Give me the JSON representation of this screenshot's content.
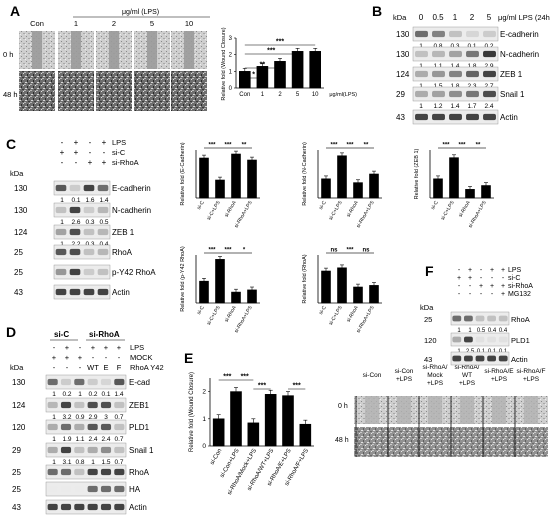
{
  "panelA": {
    "letter": "A",
    "conc_header": "μg/ml (LPS)",
    "col_labels": [
      "Con",
      "1",
      "2",
      "5",
      "10"
    ],
    "row_labels": [
      "0 h",
      "48 h"
    ],
    "chart_data": {
      "type": "bar",
      "ylabel": "Relative fold (Wound Closure)",
      "xlabel": "μg/ml(LPS)",
      "categories": [
        "Con",
        "1",
        "2",
        "5",
        "10"
      ],
      "values": [
        1.0,
        1.3,
        1.6,
        2.2,
        2.2
      ],
      "ylim": [
        0,
        3
      ],
      "yticks": [
        "0",
        "1",
        "2",
        "3"
      ],
      "significance": [
        "*",
        "**",
        "***",
        "***"
      ]
    }
  },
  "panelB": {
    "letter": "B",
    "header_kda": "kDa",
    "lanes": [
      "0",
      "0.5",
      "1",
      "2",
      "5"
    ],
    "header_unit": "μg/ml LPS (24h)",
    "rows": [
      {
        "kda": "130",
        "name": "E-cadherin",
        "q": [
          "1",
          "0.8",
          "0.3",
          "0.1",
          "0.2"
        ]
      },
      {
        "kda": "130",
        "name": "N-cadherin",
        "q": [
          "1",
          "1.1",
          "1.4",
          "1.8",
          "2.9"
        ]
      },
      {
        "kda": "124",
        "name": "ZEB 1",
        "q": [
          "1",
          "1.5",
          "1.8",
          "2.3",
          "2.7"
        ]
      },
      {
        "kda": "29",
        "name": "Snail 1",
        "q": [
          "1",
          "1.2",
          "1.4",
          "1.7",
          "2.4"
        ]
      },
      {
        "kda": "43",
        "name": "Actin",
        "q": []
      }
    ]
  },
  "panelC": {
    "letter": "C",
    "treatments": [
      {
        "name": "LPS",
        "signs": [
          "-",
          "+",
          "-",
          "+"
        ]
      },
      {
        "name": "si-C",
        "signs": [
          "+",
          "+",
          "-",
          "-"
        ]
      },
      {
        "name": "si-RhoA",
        "signs": [
          "-",
          "-",
          "+",
          "+"
        ]
      }
    ],
    "header_kda": "kDa",
    "rows": [
      {
        "kda": "130",
        "name": "E-cadherin",
        "q": [
          "1",
          "0.1",
          "1.6",
          "1.4"
        ]
      },
      {
        "kda": "130",
        "name": "N-cadherin",
        "q": [
          "1",
          "2.6",
          "0.3",
          "0.5"
        ]
      },
      {
        "kda": "124",
        "name": "ZEB 1",
        "q": [
          "1",
          "2.2",
          "0.3",
          "0.4"
        ]
      },
      {
        "kda": "25",
        "name": "RhoA",
        "q": []
      },
      {
        "kda": "25",
        "name": "p-Y42 RhoA",
        "q": []
      },
      {
        "kda": "43",
        "name": "Actin",
        "q": []
      }
    ],
    "chart_data": [
      {
        "type": "bar",
        "ylabel": "Relative fold (E-Cadherin)",
        "categories": [
          "si-C",
          "si-C+LPS",
          "si-RhoA",
          "si-RhoA+LPS"
        ],
        "values": [
          1.0,
          0.45,
          1.1,
          0.95
        ],
        "ylim": [
          0,
          1.2
        ],
        "significance": [
          "***",
          "***",
          "**"
        ]
      },
      {
        "type": "bar",
        "ylabel": "Relative fold (N-Cadherin)",
        "categories": [
          "si-C",
          "si-C+LPS",
          "si-RhoA",
          "si-RhoA+LPS"
        ],
        "values": [
          1.0,
          2.2,
          0.8,
          1.25
        ],
        "ylim": [
          0,
          2.5
        ],
        "significance": [
          "***",
          "***",
          "**"
        ]
      },
      {
        "type": "bar",
        "ylabel": "Relative fold (ZEB 1)",
        "categories": [
          "si-C",
          "si-C+LPS",
          "si-RhoA",
          "si-RhoA+LPS"
        ],
        "values": [
          1.0,
          2.1,
          0.45,
          0.65
        ],
        "ylim": [
          0,
          2.5
        ],
        "significance": [
          "***",
          "***",
          "**"
        ]
      },
      {
        "type": "bar",
        "ylabel": "Relative fold (p-Y42 RhoA)",
        "categories": [
          "si-C",
          "si-C+LPS",
          "si-RhoA",
          "si-RhoA+LPS"
        ],
        "values": [
          1.0,
          2.0,
          0.5,
          0.6
        ],
        "ylim": [
          0,
          2.2
        ],
        "significance": [
          "***",
          "***",
          "*"
        ]
      },
      {
        "type": "bar",
        "ylabel": "Relative fold (RhoA)",
        "categories": [
          "si-C",
          "si-C+LPS",
          "si-RhoA",
          "si-RhoA+LPS"
        ],
        "values": [
          1.0,
          1.1,
          0.5,
          0.55
        ],
        "ylim": [
          0,
          1.5
        ],
        "significance": [
          "ns",
          "***",
          "ns"
        ]
      }
    ]
  },
  "panelD": {
    "letter": "D",
    "group_labels": [
      "si-C",
      "si-RhoA"
    ],
    "treatments": [
      {
        "name": "LPS",
        "signs": [
          "-",
          "+",
          "-",
          "+",
          "+",
          "+"
        ]
      },
      {
        "name": "MOCK",
        "signs": [
          "+",
          "+",
          "+",
          "-",
          "-",
          "-"
        ]
      },
      {
        "name": "RhoA Y42",
        "signs": [
          "-",
          "-",
          "-",
          "WT",
          "E",
          "F"
        ]
      }
    ],
    "header_kda": "kDa",
    "rows": [
      {
        "kda": "130",
        "name": "E-cad",
        "q": [
          "1",
          "0.2",
          "1",
          "0.2",
          "0.1",
          "1.4"
        ]
      },
      {
        "kda": "124",
        "name": "ZEB1",
        "q": [
          "1",
          "3.2",
          "0.9",
          "2.9",
          "3",
          "0.7"
        ]
      },
      {
        "kda": "120",
        "name": "PLD1",
        "q": [
          "1",
          "1.9",
          "1.1",
          "2.4",
          "2.4",
          "0.7"
        ]
      },
      {
        "kda": "29",
        "name": "Snail 1",
        "q": [
          "1",
          "3.1",
          "0.8",
          "1",
          "1.5",
          "0.7"
        ]
      },
      {
        "kda": "25",
        "name": "RhoA",
        "q": []
      },
      {
        "kda": "25",
        "name": "HA",
        "q": []
      },
      {
        "kda": "43",
        "name": "Actin",
        "q": []
      }
    ]
  },
  "panelE": {
    "letter": "E",
    "chart_data": {
      "type": "bar",
      "ylabel": "Relative fold (Wound Closure)",
      "categories": [
        "si-Con",
        "si-Con+LPS",
        "si-RhoA/Mock+LPS",
        "si-RhoA/WT+LPS",
        "si-RhoA/E+LPS",
        "si-RhoA/F+LPS"
      ],
      "values": [
        1.0,
        2.0,
        0.85,
        1.9,
        1.85,
        0.8
      ],
      "ylim": [
        0,
        2.5
      ],
      "yticks": [
        "0",
        "1",
        "2"
      ],
      "significance": [
        "***",
        "***",
        "***",
        "***"
      ]
    },
    "image_cols": [
      "si-Con",
      "si-Con +LPS",
      "si-RhoA/ Mock +LPS",
      "si-RhoA/ WT +LPS",
      "si-RhoA/E +LPS",
      "si-RhoA/F +LPS"
    ],
    "row_labels": [
      "0 h",
      "48 h"
    ]
  },
  "panelF": {
    "letter": "F",
    "treatments": [
      {
        "name": "LPS",
        "signs": [
          "-",
          "+",
          "-",
          "+",
          "+"
        ]
      },
      {
        "name": "si-C",
        "signs": [
          "+",
          "+",
          "-",
          "-",
          "-"
        ]
      },
      {
        "name": "si-RhoA",
        "signs": [
          "-",
          "-",
          "+",
          "+",
          "+"
        ]
      },
      {
        "name": "MG132",
        "signs": [
          "-",
          "-",
          "-",
          "-",
          "+"
        ]
      }
    ],
    "header_kda": "kDa",
    "rows": [
      {
        "kda": "25",
        "name": "RhoA",
        "q": [
          "1",
          "1",
          "0.5",
          "0.4",
          "0.4"
        ]
      },
      {
        "kda": "120",
        "name": "PLD1",
        "q": [
          "1",
          "2.5",
          "0.1",
          "0.1",
          "0.1"
        ]
      },
      {
        "kda": "43",
        "name": "Actin",
        "q": []
      }
    ]
  }
}
